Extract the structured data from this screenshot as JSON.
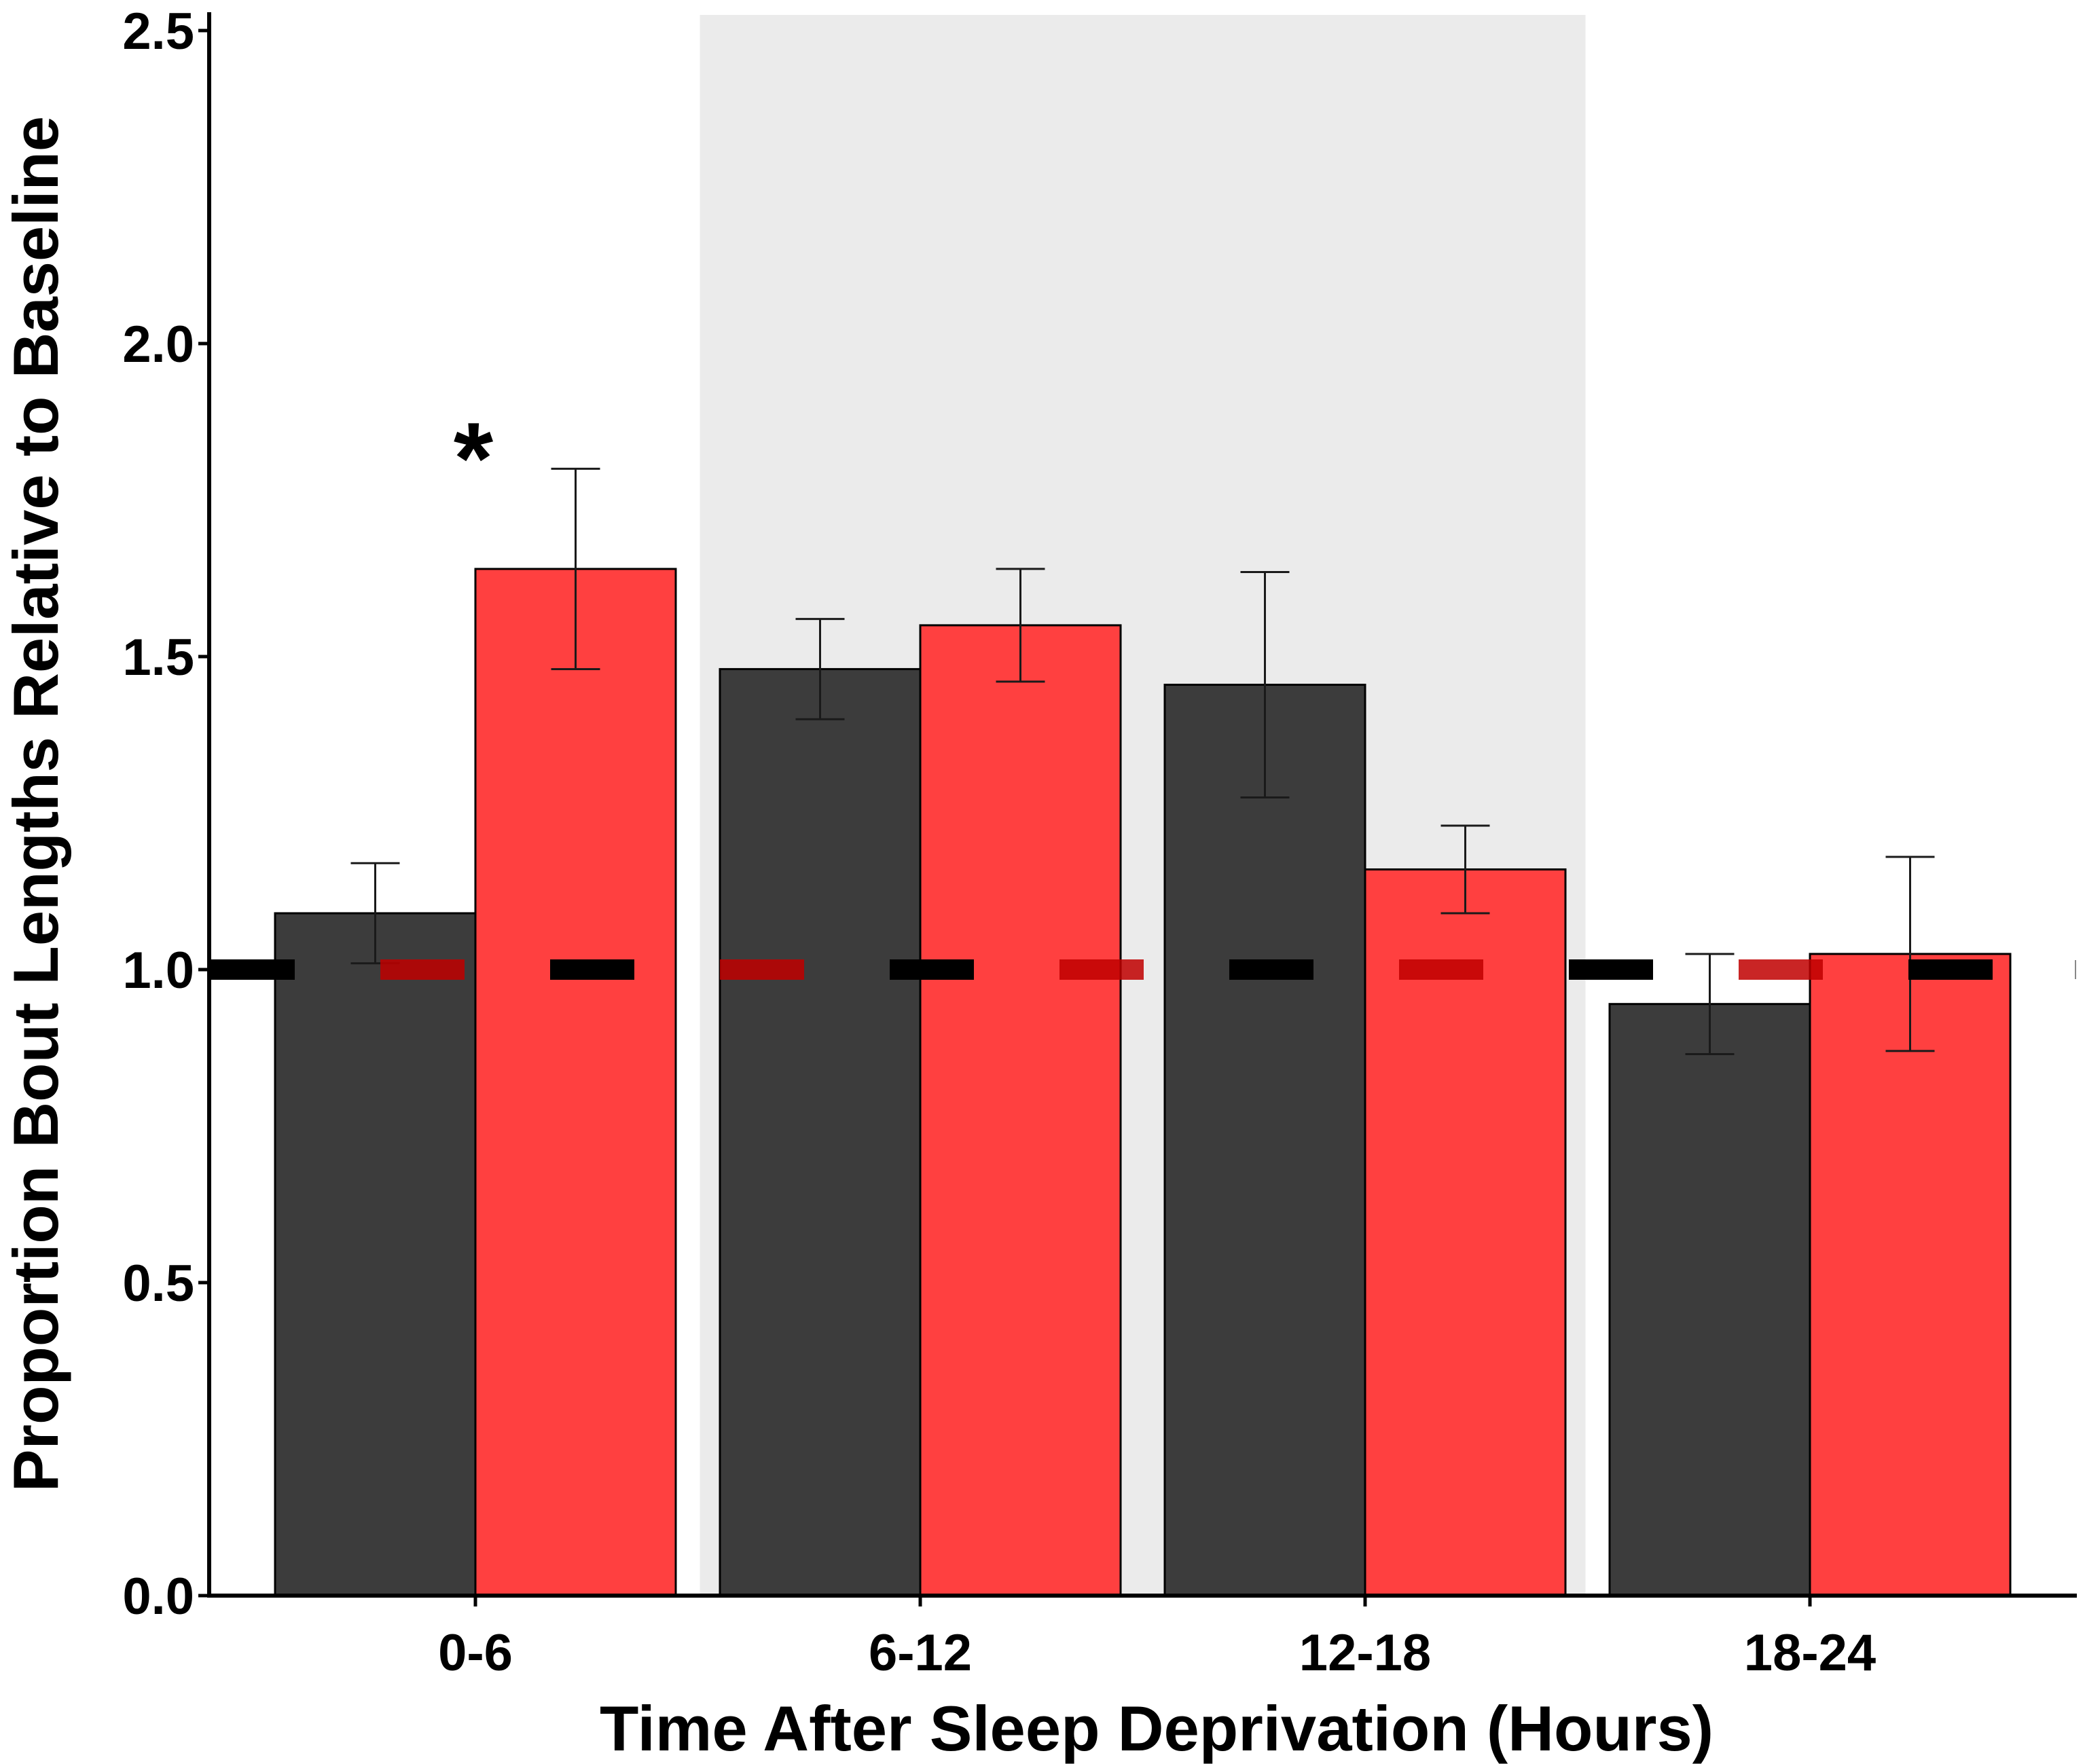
{
  "chart_data": {
    "type": "bar",
    "title": "",
    "xlabel": "Time After Sleep Deprivation (Hours)",
    "ylabel": "Proportion Bout Lengths Relative to Baseline",
    "categories": [
      "0-6",
      "6-12",
      "12-18",
      "18-24"
    ],
    "ylim": [
      0,
      2.5
    ],
    "yticks": [
      "0.0",
      "0.5",
      "1.0",
      "1.5",
      "2.0",
      "2.5"
    ],
    "grid": false,
    "legend": "none",
    "reference_line": 1.0,
    "shaded_region": {
      "from_category": "6-12",
      "to_category": "12-18",
      "color": "#ebebeb"
    },
    "series": [
      {
        "color": "#3c3c3c",
        "values": [
          1.09,
          1.48,
          1.455,
          0.945
        ],
        "error": [
          0.08,
          0.08,
          0.18,
          0.08
        ]
      },
      {
        "color": "#ff4040",
        "values": [
          1.64,
          1.55,
          1.16,
          1.025
        ],
        "error": [
          0.16,
          0.09,
          0.07,
          0.155
        ]
      }
    ],
    "annotations": [
      {
        "text": "*",
        "category": "0-6",
        "y": 1.88
      }
    ],
    "colors": {
      "reference_dark": "#000000",
      "reference_red": "#c00000"
    }
  }
}
